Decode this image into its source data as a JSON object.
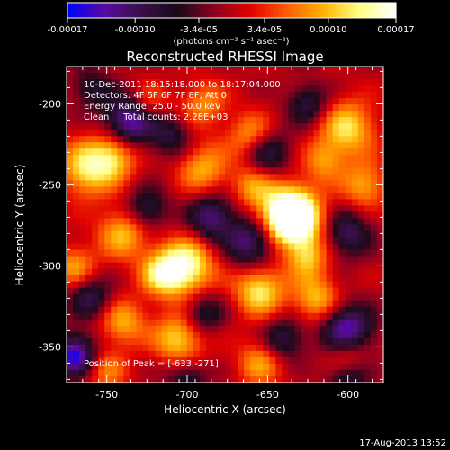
{
  "chart_data": {
    "type": "heatmap",
    "title": "Reconstructed RHESSI Image",
    "xlabel": "Heliocentric X (arcsec)",
    "ylabel": "Heliocentric Y (arcsec)",
    "xlim": [
      -775,
      -578
    ],
    "ylim": [
      -372,
      -177
    ],
    "x_ticks": [
      -750,
      -700,
      -650,
      -600
    ],
    "y_ticks": [
      -200,
      -250,
      -300,
      -350
    ],
    "x_tick_labels": [
      "-750",
      "-700",
      "-650",
      "-600"
    ],
    "y_tick_labels": [
      "-200",
      "-250",
      "-300",
      "-350"
    ],
    "colorbar": {
      "range": [
        -0.00017,
        0.00017
      ],
      "ticks": [
        -0.00017,
        -0.0001,
        -3.4e-05,
        3.4e-05,
        0.0001,
        0.00017
      ],
      "tick_labels": [
        "-0.00017",
        "-0.00010",
        "-3.4e-05",
        "3.4e-05",
        "0.00010",
        "0.00017"
      ],
      "units_label": "(photons cm⁻² s⁻¹ asec⁻²)"
    },
    "annotations": [
      "10-Dec-2011 18:15:18.000 to 18:17:04.000",
      "Detectors: 4F 5F 6F 7F 8F, Att 0",
      "Energy Range: 25.0 - 50.0 keV",
      "Clean     Total counts: 2.28E+03"
    ],
    "peak_label": "Position of Peak = [-633,-271]",
    "peak": [
      -633,
      -271
    ],
    "colors": {
      "background": "#000000",
      "colormap": [
        "#0000ff",
        "#5a0aa0",
        "#3a0f4a",
        "#1a0a1a",
        "#8a0020",
        "#e00000",
        "#ff5a00",
        "#ffb000",
        "#ffff80",
        "#ffffff"
      ]
    }
  },
  "footer_timestamp": "17-Aug-2013 13:52"
}
